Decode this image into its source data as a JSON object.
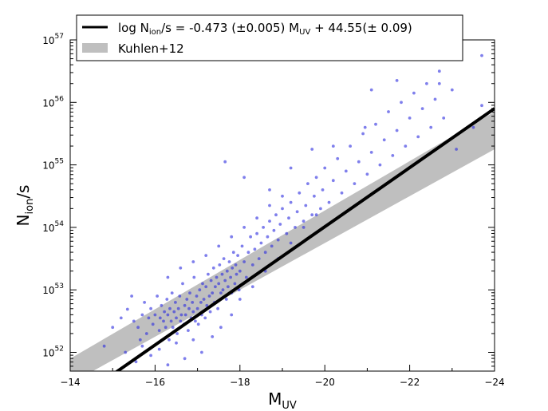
{
  "chart_data": {
    "type": "scatter",
    "xlabel": "M",
    "xlabel_sub": "UV",
    "ylabel": "N",
    "ylabel_sub": "ion",
    "ylabel_suffix": "/s",
    "xlim": [
      -14,
      -24
    ],
    "ylim_log10": [
      51.7,
      57.0
    ],
    "y_scale": "log",
    "grid": false,
    "legend_placement": "top-left",
    "x_ticks": [
      {
        "value": -14,
        "label": "−14"
      },
      {
        "value": -16,
        "label": "−16"
      },
      {
        "value": -18,
        "label": "−18"
      },
      {
        "value": -20,
        "label": "−20"
      },
      {
        "value": -22,
        "label": "−22"
      },
      {
        "value": -24,
        "label": "−24"
      }
    ],
    "y_ticks": [
      {
        "value": 52,
        "base": "10",
        "exp": "52"
      },
      {
        "value": 53,
        "base": "10",
        "exp": "53"
      },
      {
        "value": 54,
        "base": "10",
        "exp": "54"
      },
      {
        "value": 55,
        "base": "10",
        "exp": "55"
      },
      {
        "value": 56,
        "base": "10",
        "exp": "56"
      },
      {
        "value": 57,
        "base": "10",
        "exp": "57"
      }
    ],
    "fit_line": {
      "slope": -0.473,
      "intercept": 44.55,
      "color": "#000000",
      "label_parts": [
        "log N",
        "ion",
        "/s = -0.473 (±0.005) M",
        "UV",
        " + 44.55(± 0.09)"
      ]
    },
    "band": {
      "label": "Kuhlen+12",
      "color": "#bfbfbf",
      "lower": [
        [
          -14,
          51.5
        ],
        [
          -24,
          55.25
        ]
      ],
      "upper": [
        [
          -14,
          51.9
        ],
        [
          -24,
          55.85
        ]
      ]
    },
    "scatter_color": "#2a2ae0",
    "scatter_points": [
      [
        -15.35,
        52.69
      ],
      [
        -15.5,
        52.5
      ],
      [
        -15.6,
        52.4
      ],
      [
        -15.7,
        52.6
      ],
      [
        -15.75,
        52.8
      ],
      [
        -15.8,
        52.3
      ],
      [
        -15.85,
        52.55
      ],
      [
        -15.9,
        52.7
      ],
      [
        -15.95,
        52.45
      ],
      [
        -16.0,
        52.6
      ],
      [
        -16.05,
        52.9
      ],
      [
        -16.1,
        52.35
      ],
      [
        -16.12,
        52.55
      ],
      [
        -16.15,
        52.75
      ],
      [
        -16.2,
        52.5
      ],
      [
        -16.22,
        52.65
      ],
      [
        -16.25,
        52.4
      ],
      [
        -16.28,
        52.85
      ],
      [
        -16.3,
        52.6
      ],
      [
        -16.33,
        52.2
      ],
      [
        -16.35,
        52.7
      ],
      [
        -16.38,
        52.5
      ],
      [
        -16.4,
        52.95
      ],
      [
        -16.42,
        52.4
      ],
      [
        -16.45,
        52.65
      ],
      [
        -16.48,
        52.8
      ],
      [
        -16.5,
        52.55
      ],
      [
        -16.52,
        52.3
      ],
      [
        -16.55,
        52.7
      ],
      [
        -16.58,
        52.9
      ],
      [
        -16.6,
        52.5
      ],
      [
        -16.62,
        52.6
      ],
      [
        -16.65,
        53.1
      ],
      [
        -16.68,
        52.45
      ],
      [
        -16.7,
        52.75
      ],
      [
        -16.72,
        52.6
      ],
      [
        -16.75,
        52.85
      ],
      [
        -16.78,
        52.35
      ],
      [
        -16.8,
        52.7
      ],
      [
        -16.82,
        52.95
      ],
      [
        -16.85,
        52.55
      ],
      [
        -16.88,
        52.8
      ],
      [
        -16.9,
        52.65
      ],
      [
        -16.92,
        53.2
      ],
      [
        -16.95,
        52.5
      ],
      [
        -16.98,
        52.9
      ],
      [
        -17.0,
        52.7
      ],
      [
        -17.02,
        52.45
      ],
      [
        -17.05,
        53.0
      ],
      [
        -17.08,
        52.8
      ],
      [
        -17.1,
        52.6
      ],
      [
        -17.12,
        53.1
      ],
      [
        -17.15,
        52.85
      ],
      [
        -17.18,
        52.55
      ],
      [
        -17.2,
        53.05
      ],
      [
        -17.22,
        52.75
      ],
      [
        -17.25,
        53.25
      ],
      [
        -17.28,
        52.9
      ],
      [
        -17.3,
        52.65
      ],
      [
        -17.32,
        53.15
      ],
      [
        -17.35,
        52.95
      ],
      [
        -17.38,
        53.35
      ],
      [
        -17.4,
        52.8
      ],
      [
        -17.42,
        53.05
      ],
      [
        -17.45,
        53.2
      ],
      [
        -17.48,
        52.7
      ],
      [
        -17.5,
        53.1
      ],
      [
        -17.52,
        53.4
      ],
      [
        -17.55,
        52.95
      ],
      [
        -17.58,
        53.25
      ],
      [
        -17.6,
        53.0
      ],
      [
        -17.62,
        53.5
      ],
      [
        -17.65,
        53.15
      ],
      [
        -17.68,
        52.85
      ],
      [
        -17.7,
        53.3
      ],
      [
        -17.72,
        53.05
      ],
      [
        -17.75,
        53.45
      ],
      [
        -17.78,
        53.2
      ],
      [
        -17.8,
        52.95
      ],
      [
        -17.82,
        53.35
      ],
      [
        -17.85,
        53.6
      ],
      [
        -17.88,
        53.1
      ],
      [
        -17.9,
        53.4
      ],
      [
        -17.92,
        53.25
      ],
      [
        -17.95,
        53.55
      ],
      [
        -17.98,
        53.0
      ],
      [
        -18.0,
        53.3
      ],
      [
        -18.05,
        53.7
      ],
      [
        -18.1,
        53.45
      ],
      [
        -18.15,
        53.2
      ],
      [
        -18.2,
        53.6
      ],
      [
        -18.25,
        53.85
      ],
      [
        -18.3,
        53.4
      ],
      [
        -18.35,
        53.65
      ],
      [
        -18.4,
        53.9
      ],
      [
        -18.45,
        53.5
      ],
      [
        -18.5,
        53.75
      ],
      [
        -18.55,
        54.0
      ],
      [
        -18.6,
        53.6
      ],
      [
        -18.65,
        53.85
      ],
      [
        -18.7,
        54.1
      ],
      [
        -18.75,
        53.7
      ],
      [
        -18.8,
        53.95
      ],
      [
        -18.85,
        54.2
      ],
      [
        -18.9,
        53.8
      ],
      [
        -18.95,
        54.05
      ],
      [
        -19.0,
        54.3
      ],
      [
        -19.1,
        53.9
      ],
      [
        -19.15,
        54.15
      ],
      [
        -19.2,
        54.4
      ],
      [
        -19.3,
        54.0
      ],
      [
        -19.35,
        54.25
      ],
      [
        -19.4,
        54.55
      ],
      [
        -19.5,
        54.1
      ],
      [
        -19.55,
        54.35
      ],
      [
        -19.6,
        54.7
      ],
      [
        -19.7,
        54.2
      ],
      [
        -19.75,
        54.5
      ],
      [
        -19.8,
        54.8
      ],
      [
        -19.9,
        54.3
      ],
      [
        -19.95,
        54.6
      ],
      [
        -20.0,
        54.95
      ],
      [
        -20.1,
        54.4
      ],
      [
        -20.2,
        54.75
      ],
      [
        -20.3,
        55.1
      ],
      [
        -20.4,
        54.55
      ],
      [
        -20.5,
        54.9
      ],
      [
        -20.6,
        55.3
      ],
      [
        -20.7,
        54.7
      ],
      [
        -20.8,
        55.05
      ],
      [
        -20.9,
        55.5
      ],
      [
        -21.0,
        54.85
      ],
      [
        -21.1,
        55.2
      ],
      [
        -21.2,
        55.65
      ],
      [
        -21.3,
        55.0
      ],
      [
        -21.4,
        55.4
      ],
      [
        -21.5,
        55.85
      ],
      [
        -21.6,
        55.15
      ],
      [
        -21.7,
        55.55
      ],
      [
        -21.8,
        56.0
      ],
      [
        -21.9,
        55.3
      ],
      [
        -22.0,
        55.75
      ],
      [
        -22.1,
        56.15
      ],
      [
        -22.2,
        55.45
      ],
      [
        -22.3,
        55.9
      ],
      [
        -22.4,
        56.3
      ],
      [
        -22.5,
        55.6
      ],
      [
        -22.6,
        56.05
      ],
      [
        -22.7,
        56.5
      ],
      [
        -22.8,
        55.75
      ],
      [
        -23.0,
        56.2
      ],
      [
        -23.1,
        55.25
      ],
      [
        -23.5,
        55.6
      ],
      [
        -23.7,
        56.75
      ],
      [
        -23.7,
        55.95
      ],
      [
        -22.7,
        56.3
      ],
      [
        -21.7,
        56.35
      ],
      [
        -21.1,
        56.2
      ],
      [
        -20.95,
        55.6
      ],
      [
        -20.2,
        55.3
      ],
      [
        -15.3,
        52.0
      ],
      [
        -15.55,
        51.85
      ],
      [
        -15.7,
        52.1
      ],
      [
        -15.9,
        51.95
      ],
      [
        -16.1,
        52.05
      ],
      [
        -16.3,
        51.8
      ],
      [
        -16.5,
        52.15
      ],
      [
        -16.7,
        51.9
      ],
      [
        -16.9,
        52.2
      ],
      [
        -17.1,
        52.0
      ],
      [
        -17.35,
        52.25
      ],
      [
        -17.55,
        52.4
      ],
      [
        -17.8,
        52.6
      ],
      [
        -18.0,
        52.85
      ],
      [
        -18.3,
        53.05
      ],
      [
        -18.6,
        53.3
      ],
      [
        -18.9,
        53.5
      ],
      [
        -19.2,
        53.75
      ],
      [
        -19.5,
        54.0
      ],
      [
        -19.8,
        54.2
      ],
      [
        -16.3,
        53.2
      ],
      [
        -16.6,
        53.35
      ],
      [
        -16.9,
        53.45
      ],
      [
        -17.2,
        53.55
      ],
      [
        -17.5,
        53.7
      ],
      [
        -17.8,
        53.85
      ],
      [
        -18.1,
        54.0
      ],
      [
        -18.4,
        54.15
      ],
      [
        -18.7,
        54.35
      ],
      [
        -19.0,
        54.5
      ],
      [
        -17.65,
        55.05
      ],
      [
        -18.1,
        54.8
      ],
      [
        -18.7,
        54.6
      ],
      [
        -19.2,
        54.95
      ],
      [
        -19.7,
        55.25
      ],
      [
        -15.0,
        52.4
      ],
      [
        -14.8,
        52.1
      ],
      [
        -15.2,
        52.55
      ],
      [
        -15.45,
        52.9
      ],
      [
        -15.65,
        52.2
      ]
    ]
  }
}
